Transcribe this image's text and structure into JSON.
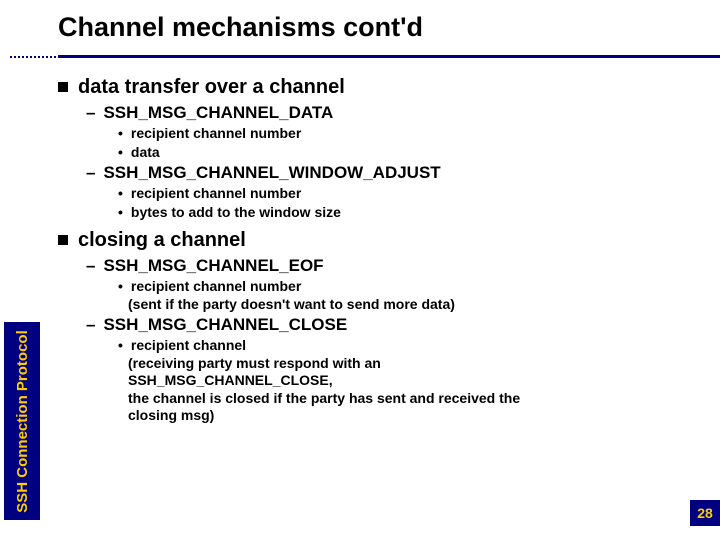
{
  "colors": {
    "brand": "#000080",
    "accent": "#ffcc00",
    "text": "#000000",
    "bg": "#ffffff"
  },
  "page_number": "28",
  "sidebar_label": "SSH Connection Protocol",
  "title": "Channel mechanisms cont'd",
  "sections": [
    {
      "heading": "data transfer over a channel",
      "subs": [
        {
          "label": "SSH_MSG_CHANNEL_DATA",
          "dots": [
            {
              "text": "recipient channel number"
            },
            {
              "text": "data"
            }
          ]
        },
        {
          "label": "SSH_MSG_CHANNEL_WINDOW_ADJUST",
          "dots": [
            {
              "text": "recipient channel number"
            },
            {
              "text": "bytes to add to the window size"
            }
          ]
        }
      ]
    },
    {
      "heading": "closing a channel",
      "subs": [
        {
          "label": "SSH_MSG_CHANNEL_EOF",
          "dots": [
            {
              "text": "recipient channel number",
              "note": "(sent if the party doesn't want to send more data)"
            }
          ]
        },
        {
          "label": "SSH_MSG_CHANNEL_CLOSE",
          "dots": [
            {
              "text": "recipient channel",
              "note": "(receiving party must respond with an\n SSH_MSG_CHANNEL_CLOSE,\n the channel is closed if the party has sent and received the\n closing msg)"
            }
          ]
        }
      ]
    }
  ]
}
